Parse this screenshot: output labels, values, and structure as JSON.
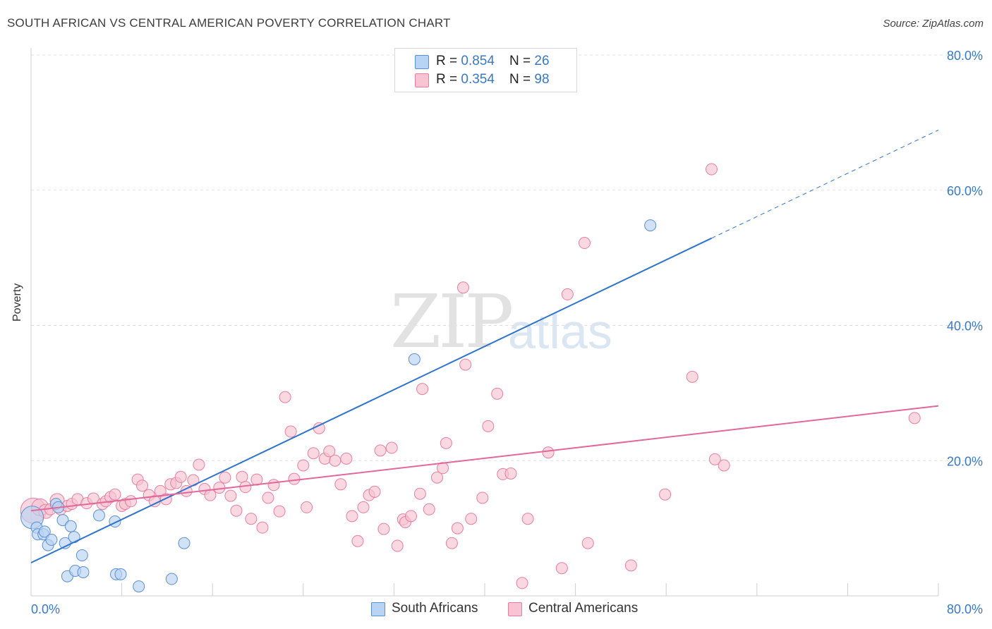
{
  "header": {
    "title": "SOUTH AFRICAN VS CENTRAL AMERICAN POVERTY CORRELATION CHART",
    "source": "Source: ZipAtlas.com"
  },
  "watermark": {
    "zip": "ZIP",
    "atlas": "atlas"
  },
  "legend_top": {
    "rows": [
      {
        "r_label": "R = ",
        "r_value": "0.854",
        "n_label": "N = ",
        "n_value": "26"
      },
      {
        "r_label": "R = ",
        "r_value": "0.354",
        "n_label": "N = ",
        "n_value": "98"
      }
    ]
  },
  "legend_bottom": {
    "series_a": "South Africans",
    "series_b": "Central Americans"
  },
  "colors": {
    "blue_fill": "#b8d3f3",
    "blue_stroke": "#5b8fd0",
    "blue_line": "#2e74cc",
    "pink_fill": "#f8c3d3",
    "pink_stroke": "#e57fa0",
    "pink_line": "#e2689a",
    "axis_label": "#3a78c4",
    "grid": "#e1e1e1"
  },
  "chart_data": {
    "type": "scatter",
    "title": "SOUTH AFRICAN VS CENTRAL AMERICAN POVERTY CORRELATION CHART",
    "xlabel": "",
    "ylabel": "Poverty",
    "xlim": [
      0,
      80
    ],
    "ylim": [
      0,
      80
    ],
    "x_tick_labels": [
      "0.0%",
      "80.0%"
    ],
    "y_tick_labels": [
      "20.0%",
      "40.0%",
      "60.0%",
      "80.0%"
    ],
    "y_ticks": [
      20,
      40,
      60,
      80
    ],
    "x_minor_ticks": [
      0,
      8,
      16,
      24,
      32,
      40,
      48,
      56,
      64,
      72,
      80
    ],
    "grid": true,
    "series": [
      {
        "name": "South Africans",
        "r": 0.854,
        "n": 26,
        "trend": {
          "x0": 0,
          "y0": 4.9,
          "x1": 60,
          "y1": 52.9,
          "dash_to_x": 80,
          "dash_to_y": 68.9
        },
        "points": [
          [
            0.1,
            11.6,
            16
          ],
          [
            0.5,
            10.1,
            8
          ],
          [
            0.6,
            9.1,
            8
          ],
          [
            1.1,
            9.1,
            8
          ],
          [
            1.2,
            9.5,
            8
          ],
          [
            1.5,
            7.5,
            8
          ],
          [
            1.8,
            8.3,
            8
          ],
          [
            2.2,
            13.6,
            8
          ],
          [
            2.4,
            13.1,
            8
          ],
          [
            2.8,
            11.2,
            8
          ],
          [
            3.0,
            7.8,
            8
          ],
          [
            3.2,
            2.9,
            8
          ],
          [
            3.5,
            10.3,
            8
          ],
          [
            3.8,
            8.7,
            8
          ],
          [
            3.9,
            3.7,
            8
          ],
          [
            4.6,
            3.5,
            8
          ],
          [
            4.5,
            6.0,
            8
          ],
          [
            6.0,
            11.9,
            8
          ],
          [
            7.4,
            11.0,
            8
          ],
          [
            7.5,
            3.2,
            8
          ],
          [
            7.9,
            3.2,
            8
          ],
          [
            9.5,
            1.4,
            8
          ],
          [
            12.4,
            2.5,
            8
          ],
          [
            13.5,
            7.8,
            8
          ],
          [
            33.8,
            35.0,
            8
          ],
          [
            54.6,
            54.8,
            8
          ]
        ]
      },
      {
        "name": "Central Americans",
        "r": 0.354,
        "n": 98,
        "trend": {
          "x0": 0,
          "y0": 12.6,
          "x1": 80,
          "y1": 28.1
        },
        "points": [
          [
            0.2,
            12.6,
            18
          ],
          [
            0.8,
            13.1,
            12
          ],
          [
            1.3,
            12.5,
            10
          ],
          [
            1.7,
            12.8,
            8
          ],
          [
            2.3,
            14.1,
            10
          ],
          [
            2.6,
            12.8,
            8
          ],
          [
            3.2,
            13.3,
            8
          ],
          [
            3.6,
            13.6,
            8
          ],
          [
            4.1,
            14.3,
            8
          ],
          [
            4.9,
            13.7,
            8
          ],
          [
            5.5,
            14.4,
            8
          ],
          [
            6.3,
            13.6,
            8
          ],
          [
            6.6,
            14.0,
            8
          ],
          [
            7.0,
            14.6,
            8
          ],
          [
            7.4,
            15.0,
            8
          ],
          [
            8.0,
            13.3,
            8
          ],
          [
            8.3,
            13.6,
            8
          ],
          [
            8.8,
            14.0,
            8
          ],
          [
            9.4,
            17.2,
            8
          ],
          [
            9.8,
            16.3,
            8
          ],
          [
            10.4,
            14.9,
            8
          ],
          [
            10.9,
            14.0,
            8
          ],
          [
            11.4,
            15.5,
            8
          ],
          [
            11.9,
            14.3,
            8
          ],
          [
            12.3,
            16.5,
            8
          ],
          [
            12.8,
            16.7,
            8
          ],
          [
            13.2,
            17.6,
            8
          ],
          [
            13.7,
            15.5,
            8
          ],
          [
            14.3,
            17.1,
            8
          ],
          [
            14.8,
            19.4,
            8
          ],
          [
            15.3,
            15.8,
            8
          ],
          [
            15.8,
            14.9,
            8
          ],
          [
            16.6,
            16.0,
            8
          ],
          [
            17.1,
            17.5,
            8
          ],
          [
            17.6,
            14.8,
            8
          ],
          [
            18.1,
            12.6,
            8
          ],
          [
            18.6,
            17.6,
            8
          ],
          [
            18.9,
            16.1,
            8
          ],
          [
            19.4,
            11.4,
            8
          ],
          [
            19.9,
            17.2,
            8
          ],
          [
            20.4,
            10.1,
            8
          ],
          [
            20.9,
            14.5,
            8
          ],
          [
            21.4,
            16.4,
            8
          ],
          [
            21.9,
            12.5,
            8
          ],
          [
            22.4,
            29.4,
            8
          ],
          [
            22.9,
            24.3,
            8
          ],
          [
            23.2,
            17.3,
            8
          ],
          [
            24.0,
            19.3,
            8
          ],
          [
            24.3,
            13.1,
            8
          ],
          [
            24.9,
            21.1,
            8
          ],
          [
            25.4,
            24.8,
            8
          ],
          [
            25.9,
            20.3,
            8
          ],
          [
            26.3,
            21.4,
            8
          ],
          [
            26.8,
            20.0,
            8
          ],
          [
            27.3,
            16.5,
            8
          ],
          [
            27.8,
            20.3,
            8
          ],
          [
            28.3,
            11.8,
            8
          ],
          [
            28.8,
            8.1,
            8
          ],
          [
            29.3,
            13.1,
            8
          ],
          [
            29.8,
            14.9,
            8
          ],
          [
            30.3,
            15.4,
            8
          ],
          [
            30.8,
            21.5,
            8
          ],
          [
            31.1,
            9.9,
            8
          ],
          [
            31.8,
            21.9,
            8
          ],
          [
            32.3,
            7.4,
            8
          ],
          [
            32.8,
            11.3,
            8
          ],
          [
            33.0,
            10.9,
            8
          ],
          [
            33.5,
            11.8,
            8
          ],
          [
            34.3,
            15.1,
            8
          ],
          [
            34.5,
            30.6,
            8
          ],
          [
            35.1,
            12.8,
            8
          ],
          [
            35.8,
            17.5,
            8
          ],
          [
            36.3,
            18.9,
            8
          ],
          [
            36.6,
            22.6,
            8
          ],
          [
            37.1,
            7.8,
            8
          ],
          [
            37.6,
            10.0,
            8
          ],
          [
            38.3,
            34.2,
            8
          ],
          [
            38.1,
            45.6,
            8
          ],
          [
            38.8,
            11.4,
            8
          ],
          [
            39.8,
            14.5,
            8
          ],
          [
            40.3,
            25.1,
            8
          ],
          [
            41.1,
            29.9,
            8
          ],
          [
            41.6,
            18.0,
            8
          ],
          [
            42.3,
            18.1,
            8
          ],
          [
            43.3,
            1.9,
            8
          ],
          [
            43.8,
            11.4,
            8
          ],
          [
            45.6,
            21.2,
            8
          ],
          [
            46.8,
            4.1,
            8
          ],
          [
            47.3,
            44.6,
            8
          ],
          [
            48.8,
            52.2,
            8
          ],
          [
            49.1,
            7.8,
            8
          ],
          [
            52.9,
            4.5,
            8
          ],
          [
            55.9,
            15.0,
            8
          ],
          [
            58.3,
            32.4,
            8
          ],
          [
            60.3,
            20.2,
            8
          ],
          [
            60.0,
            63.1,
            8
          ],
          [
            61.1,
            19.3,
            8
          ],
          [
            77.9,
            26.3,
            8
          ]
        ]
      }
    ]
  }
}
